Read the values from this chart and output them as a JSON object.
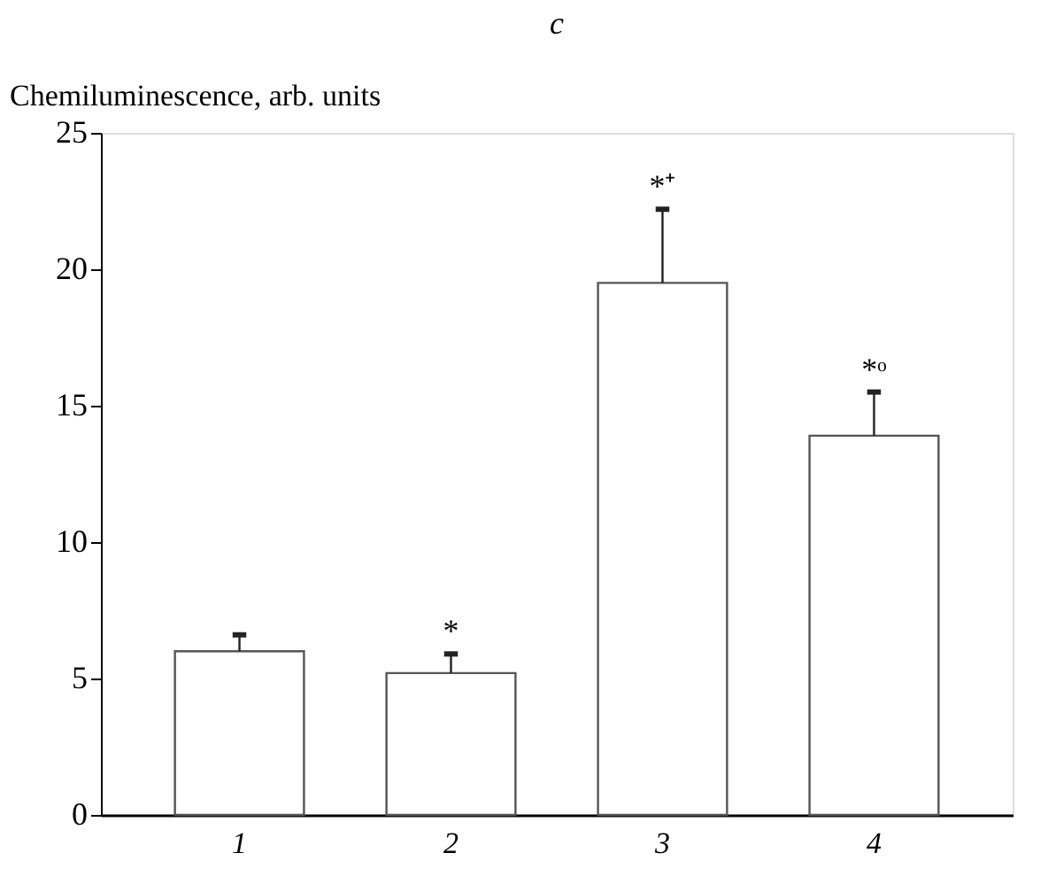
{
  "chart_data": {
    "type": "bar",
    "title": "c",
    "ylabel": "Chemiluminescence, arb. units",
    "categories": [
      "1",
      "2",
      "3",
      "4"
    ],
    "values": [
      6.0,
      5.2,
      19.5,
      13.9
    ],
    "errors": [
      [
        6.0,
        6.6
      ],
      [
        5.2,
        5.9
      ],
      [
        19.5,
        22.2
      ],
      [
        13.9,
        15.5
      ]
    ],
    "color": "#ffffff",
    "ylim": [
      0,
      25
    ],
    "yticks": [
      0,
      5,
      10,
      15,
      20,
      25
    ],
    "grid": false,
    "annotations": [
      {
        "text": "*",
        "x": "2",
        "y": 5.9
      },
      {
        "text": "*⁺",
        "x": "3",
        "y": 22.2
      },
      {
        "text": "*ᵒ",
        "x": "4",
        "y": 15.5
      }
    ]
  }
}
